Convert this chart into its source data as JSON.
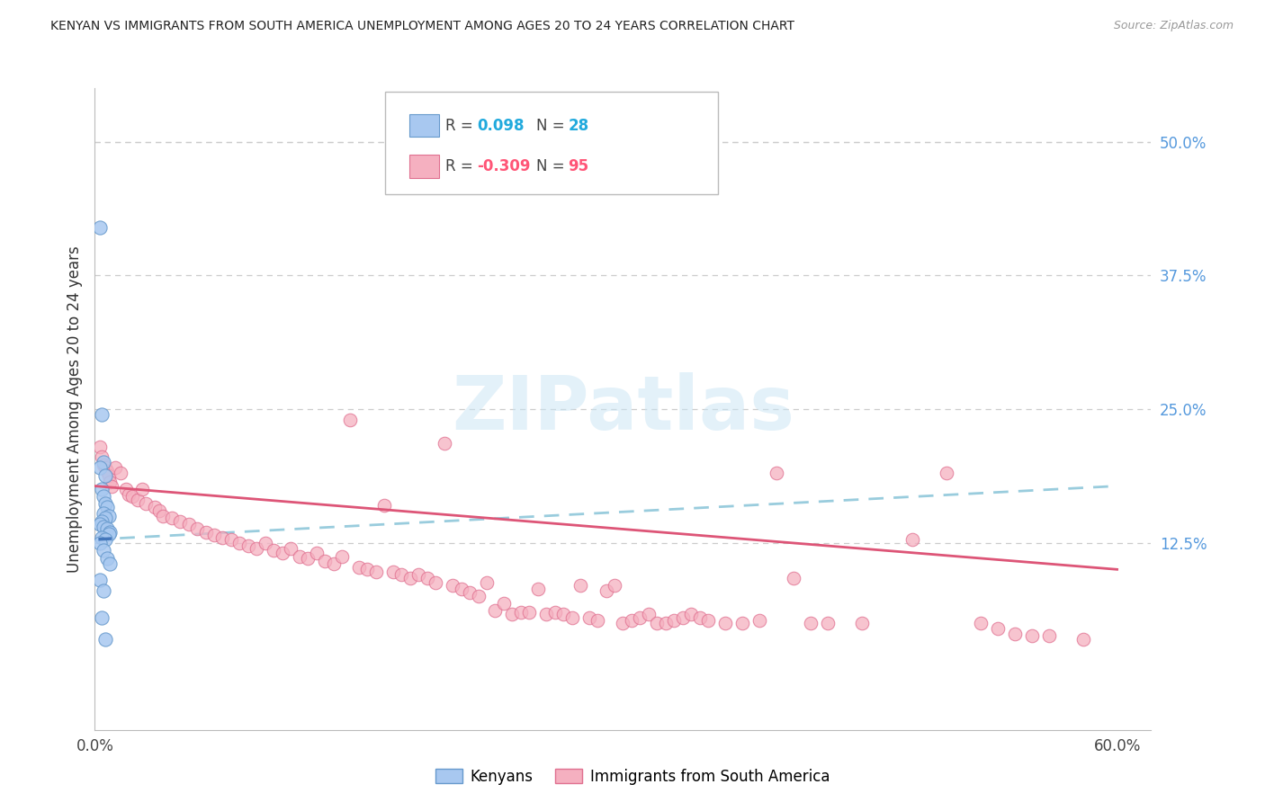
{
  "title": "KENYAN VS IMMIGRANTS FROM SOUTH AMERICA UNEMPLOYMENT AMONG AGES 20 TO 24 YEARS CORRELATION CHART",
  "source": "Source: ZipAtlas.com",
  "ylabel": "Unemployment Among Ages 20 to 24 years",
  "xlim": [
    0.0,
    0.62
  ],
  "ylim": [
    -0.05,
    0.55
  ],
  "xticks": [
    0.0,
    0.1,
    0.2,
    0.3,
    0.4,
    0.5,
    0.6
  ],
  "ytick_labels_right": [
    "50.0%",
    "37.5%",
    "25.0%",
    "12.5%"
  ],
  "ytick_values_right": [
    0.5,
    0.375,
    0.25,
    0.125
  ],
  "grid_color": "#cccccc",
  "background_color": "#ffffff",
  "kenyan_color": "#a8c8f0",
  "kenyan_edge_color": "#6699cc",
  "sa_color": "#f5b0c0",
  "sa_edge_color": "#e07090",
  "kenyan_trend_color": "#4477bb",
  "sa_trend_color": "#dd5577",
  "kenyan_dashed_color": "#99ccdd",
  "kenyan_scatter": [
    [
      0.003,
      0.42
    ],
    [
      0.004,
      0.245
    ],
    [
      0.005,
      0.2
    ],
    [
      0.003,
      0.195
    ],
    [
      0.006,
      0.188
    ],
    [
      0.004,
      0.175
    ],
    [
      0.005,
      0.168
    ],
    [
      0.006,
      0.162
    ],
    [
      0.007,
      0.158
    ],
    [
      0.005,
      0.152
    ],
    [
      0.008,
      0.15
    ],
    [
      0.006,
      0.148
    ],
    [
      0.004,
      0.145
    ],
    [
      0.003,
      0.142
    ],
    [
      0.005,
      0.14
    ],
    [
      0.007,
      0.138
    ],
    [
      0.009,
      0.135
    ],
    [
      0.008,
      0.133
    ],
    [
      0.004,
      0.13
    ],
    [
      0.006,
      0.128
    ],
    [
      0.003,
      0.125
    ],
    [
      0.005,
      0.118
    ],
    [
      0.007,
      0.11
    ],
    [
      0.009,
      0.105
    ],
    [
      0.003,
      0.09
    ],
    [
      0.005,
      0.08
    ],
    [
      0.004,
      0.055
    ],
    [
      0.006,
      0.035
    ]
  ],
  "sa_scatter": [
    [
      0.003,
      0.215
    ],
    [
      0.004,
      0.205
    ],
    [
      0.005,
      0.198
    ],
    [
      0.006,
      0.195
    ],
    [
      0.007,
      0.192
    ],
    [
      0.008,
      0.188
    ],
    [
      0.009,
      0.182
    ],
    [
      0.01,
      0.178
    ],
    [
      0.012,
      0.195
    ],
    [
      0.015,
      0.19
    ],
    [
      0.018,
      0.175
    ],
    [
      0.02,
      0.17
    ],
    [
      0.022,
      0.168
    ],
    [
      0.025,
      0.165
    ],
    [
      0.028,
      0.175
    ],
    [
      0.03,
      0.162
    ],
    [
      0.035,
      0.158
    ],
    [
      0.038,
      0.155
    ],
    [
      0.04,
      0.15
    ],
    [
      0.045,
      0.148
    ],
    [
      0.05,
      0.145
    ],
    [
      0.055,
      0.142
    ],
    [
      0.06,
      0.138
    ],
    [
      0.065,
      0.135
    ],
    [
      0.07,
      0.132
    ],
    [
      0.075,
      0.13
    ],
    [
      0.08,
      0.128
    ],
    [
      0.085,
      0.125
    ],
    [
      0.09,
      0.122
    ],
    [
      0.095,
      0.12
    ],
    [
      0.1,
      0.125
    ],
    [
      0.105,
      0.118
    ],
    [
      0.11,
      0.115
    ],
    [
      0.115,
      0.12
    ],
    [
      0.12,
      0.112
    ],
    [
      0.125,
      0.11
    ],
    [
      0.13,
      0.115
    ],
    [
      0.135,
      0.108
    ],
    [
      0.14,
      0.105
    ],
    [
      0.145,
      0.112
    ],
    [
      0.15,
      0.24
    ],
    [
      0.155,
      0.102
    ],
    [
      0.16,
      0.1
    ],
    [
      0.165,
      0.098
    ],
    [
      0.17,
      0.16
    ],
    [
      0.175,
      0.098
    ],
    [
      0.18,
      0.095
    ],
    [
      0.185,
      0.092
    ],
    [
      0.19,
      0.095
    ],
    [
      0.195,
      0.092
    ],
    [
      0.2,
      0.088
    ],
    [
      0.205,
      0.218
    ],
    [
      0.21,
      0.085
    ],
    [
      0.215,
      0.082
    ],
    [
      0.22,
      0.078
    ],
    [
      0.225,
      0.075
    ],
    [
      0.23,
      0.088
    ],
    [
      0.235,
      0.062
    ],
    [
      0.24,
      0.068
    ],
    [
      0.245,
      0.058
    ],
    [
      0.25,
      0.06
    ],
    [
      0.255,
      0.06
    ],
    [
      0.26,
      0.082
    ],
    [
      0.265,
      0.058
    ],
    [
      0.27,
      0.06
    ],
    [
      0.275,
      0.058
    ],
    [
      0.28,
      0.055
    ],
    [
      0.285,
      0.085
    ],
    [
      0.29,
      0.055
    ],
    [
      0.295,
      0.052
    ],
    [
      0.3,
      0.08
    ],
    [
      0.305,
      0.085
    ],
    [
      0.31,
      0.05
    ],
    [
      0.315,
      0.052
    ],
    [
      0.32,
      0.055
    ],
    [
      0.325,
      0.058
    ],
    [
      0.33,
      0.05
    ],
    [
      0.335,
      0.05
    ],
    [
      0.34,
      0.052
    ],
    [
      0.345,
      0.055
    ],
    [
      0.35,
      0.058
    ],
    [
      0.355,
      0.055
    ],
    [
      0.36,
      0.052
    ],
    [
      0.37,
      0.05
    ],
    [
      0.38,
      0.05
    ],
    [
      0.39,
      0.052
    ],
    [
      0.4,
      0.19
    ],
    [
      0.41,
      0.092
    ],
    [
      0.42,
      0.05
    ],
    [
      0.43,
      0.05
    ],
    [
      0.45,
      0.05
    ],
    [
      0.48,
      0.128
    ],
    [
      0.5,
      0.19
    ],
    [
      0.52,
      0.05
    ],
    [
      0.53,
      0.045
    ],
    [
      0.54,
      0.04
    ],
    [
      0.55,
      0.038
    ],
    [
      0.56,
      0.038
    ],
    [
      0.58,
      0.035
    ]
  ],
  "kenyan_trend_x": [
    0.0,
    0.6
  ],
  "kenyan_trend_y_start": 0.128,
  "kenyan_trend_y_end": 0.178,
  "sa_trend_x": [
    0.0,
    0.6
  ],
  "sa_trend_y_start": 0.178,
  "sa_trend_y_end": 0.1
}
